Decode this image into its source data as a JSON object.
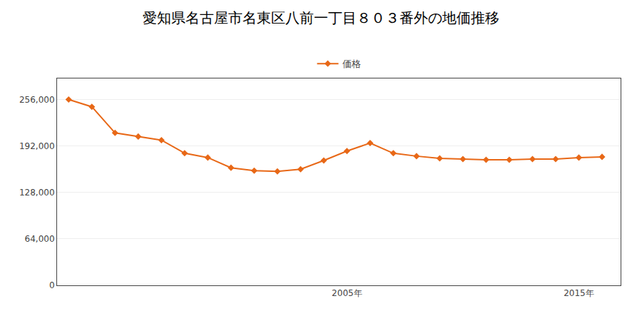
{
  "chart_data": {
    "type": "line",
    "title": "愛知県名古屋市名東区八前一丁目８０３番外の地価推移",
    "x": [
      1993,
      1994,
      1995,
      1996,
      1997,
      1998,
      1999,
      2000,
      2001,
      2002,
      2003,
      2004,
      2005,
      2006,
      2007,
      2008,
      2009,
      2010,
      2011,
      2012,
      2013,
      2014,
      2015,
      2016
    ],
    "series": [
      {
        "name": "価格",
        "color": "#e86817",
        "values": [
          256000,
          246000,
          210000,
          205000,
          200000,
          182000,
          176000,
          162000,
          158000,
          157000,
          160000,
          172000,
          185000,
          196000,
          182000,
          178000,
          175000,
          174000,
          173000,
          173000,
          174000,
          174000,
          176000,
          177000
        ]
      }
    ],
    "xlim": [
      1992.5,
      2016.8
    ],
    "xticks": [
      {
        "value": 2005,
        "label": "2005年"
      },
      {
        "value": 2015,
        "label": "2015年"
      }
    ],
    "ylim": [
      0,
      285000
    ],
    "yticks": [
      0,
      {
        "value": 64000,
        "label": "64,000"
      },
      {
        "value": 128000,
        "label": "128,000"
      },
      {
        "value": 192000,
        "label": "192,000"
      },
      {
        "value": 256000,
        "label": "256,000"
      }
    ],
    "grid": true,
    "legend": "top",
    "marker": "diamond"
  }
}
